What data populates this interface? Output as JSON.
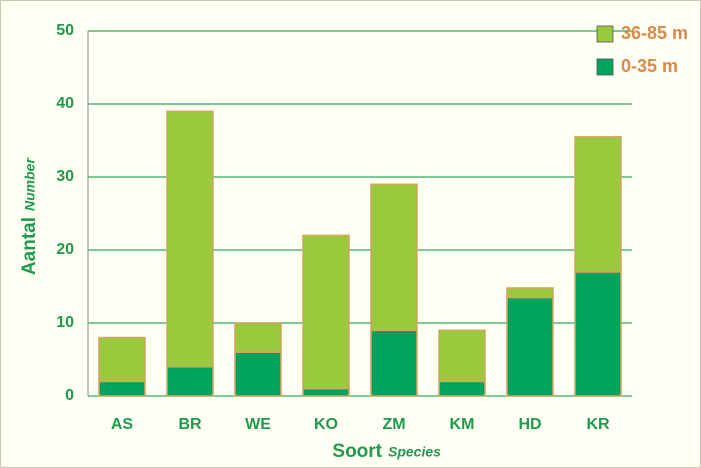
{
  "chart_data": {
    "type": "stacked_bar",
    "x_label": "Soort",
    "x_label_sub": "Species",
    "y_label": "Aantal",
    "y_label_sub": "Number",
    "categories": [
      "AS",
      "BR",
      "WE",
      "KO",
      "ZM",
      "KM",
      "HD",
      "KR"
    ],
    "series": [
      {
        "name": "0-35 m",
        "color": "#00a35c",
        "values": [
          2,
          4,
          6,
          1,
          9,
          2,
          13.5,
          17
        ]
      },
      {
        "name": "36-85 m",
        "color": "#99c93d",
        "values": [
          6,
          35,
          4,
          21,
          20,
          7,
          1.3,
          18.5
        ]
      }
    ],
    "ylim": [
      0,
      50
    ],
    "yticks": [
      0,
      10,
      20,
      30,
      40,
      50
    ],
    "grid": true,
    "legend": "top-right"
  }
}
